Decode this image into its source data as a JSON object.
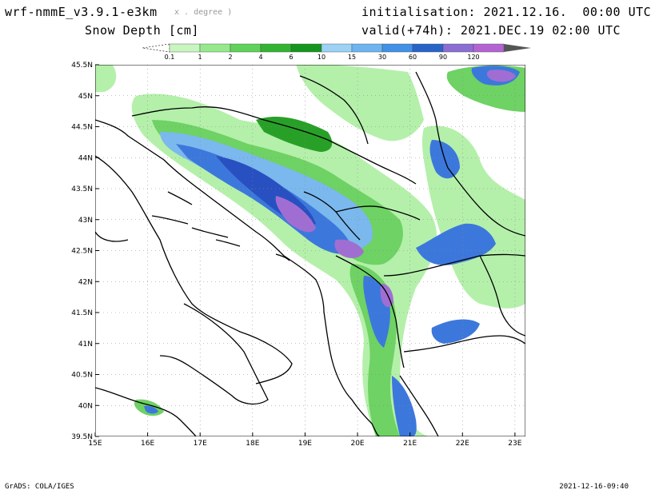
{
  "header": {
    "model": "wrf-nmmE_v3.9.1-e3km",
    "units_note": "x . degree )",
    "variable": "Snow Depth [cm]",
    "init_label": "initialisation: 2021.12.16.  00:00 UTC",
    "valid_label": "valid(+74h): 2021.DEC.19 02:00 UTC"
  },
  "colorbar": {
    "labels": [
      "0.1",
      "1",
      "2",
      "4",
      "6",
      "10",
      "15",
      "30",
      "60",
      "90",
      "120"
    ],
    "colors": [
      "#c8f5c0",
      "#96e88c",
      "#5fd25a",
      "#32b432",
      "#14961e",
      "#9bd2f5",
      "#6eb4f0",
      "#4191e6",
      "#2864c8",
      "#8c6ed2",
      "#b464d2"
    ],
    "low_color": "#ffffff",
    "high_color": "#555555"
  },
  "map": {
    "lon_labels": [
      "15E",
      "16E",
      "17E",
      "18E",
      "19E",
      "20E",
      "21E",
      "22E",
      "23E"
    ],
    "lat_labels": [
      "45.5N",
      "45N",
      "44.5N",
      "44N",
      "43.5N",
      "43N",
      "42.5N",
      "42N",
      "41.5N",
      "41N",
      "40.5N",
      "40N",
      "39.5N"
    ],
    "snow_colors": {
      "light": "#b4f0aa",
      "mid": "#6ed264",
      "green": "#28a028",
      "blue_light": "#7ab8ee",
      "blue": "#3c78dc",
      "blue_dark": "#2850c0",
      "purple": "#a06ed2"
    }
  },
  "footer": {
    "left": "GrADS: COLA/IGES",
    "right": "2021-12-16-09:40"
  }
}
